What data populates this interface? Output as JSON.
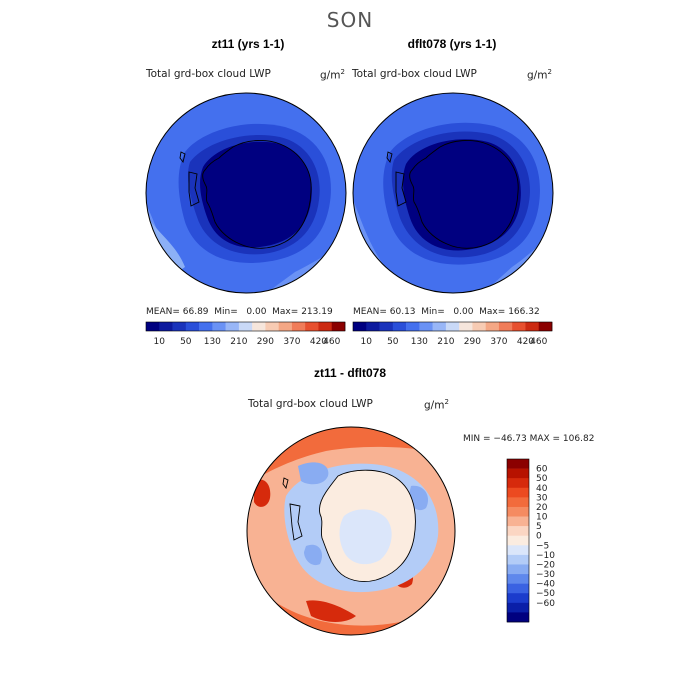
{
  "figure": {
    "season_title": "SON"
  },
  "panels": [
    {
      "title": "zt11 (yrs 1-1)",
      "variable": "Total grd-box cloud LWP",
      "units_base": "g/m",
      "units_exp": "2",
      "mean_label": "MEAN=",
      "mean": "66.89",
      "min_label": "Min=",
      "min": "0.00",
      "max_label": "Max=",
      "max": "213.19"
    },
    {
      "title": "dflt078 (yrs 1-1)",
      "variable": "Total grd-box cloud LWP",
      "units_base": "g/m",
      "units_exp": "2",
      "mean_label": "MEAN=",
      "mean": "60.13",
      "min_label": "Min=",
      "min": "0.00",
      "max_label": "Max=",
      "max": "166.32"
    }
  ],
  "abs_colorbar": {
    "ticks": [
      "10",
      "50",
      "130",
      "210",
      "290",
      "370",
      "420",
      "460"
    ],
    "colors": [
      "#000080",
      "#0d1a9e",
      "#1a33bb",
      "#2a4fd9",
      "#4470ee",
      "#6a92f5",
      "#98b6f7",
      "#c9d9f7",
      "#f6e6dc",
      "#f7cbb3",
      "#f4a785",
      "#f07c59",
      "#e7502f",
      "#cc2a12",
      "#8b0000"
    ]
  },
  "diff_panel": {
    "title": "zt11 - dflt078",
    "variable": "Total grd-box cloud LWP",
    "units_base": "g/m",
    "units_exp": "2",
    "stats_text": "MIN = −46.73  MAX = 106.82"
  },
  "diff_colorbar": {
    "ticks": [
      "60",
      "50",
      "40",
      "30",
      "20",
      "10",
      "5",
      "0",
      "−5",
      "−10",
      "−20",
      "−30",
      "−40",
      "−50",
      "−60"
    ],
    "colors": [
      "#8b0000",
      "#b71200",
      "#d62a0c",
      "#ec4a20",
      "#f26b3c",
      "#f58b61",
      "#f8b293",
      "#fbd6c3",
      "#fbece0",
      "#dbe6fa",
      "#b3ccf7",
      "#89acf2",
      "#5f88ec",
      "#3a62e2",
      "#1b3ccc",
      "#0a1fa8",
      "#00007f"
    ]
  }
}
